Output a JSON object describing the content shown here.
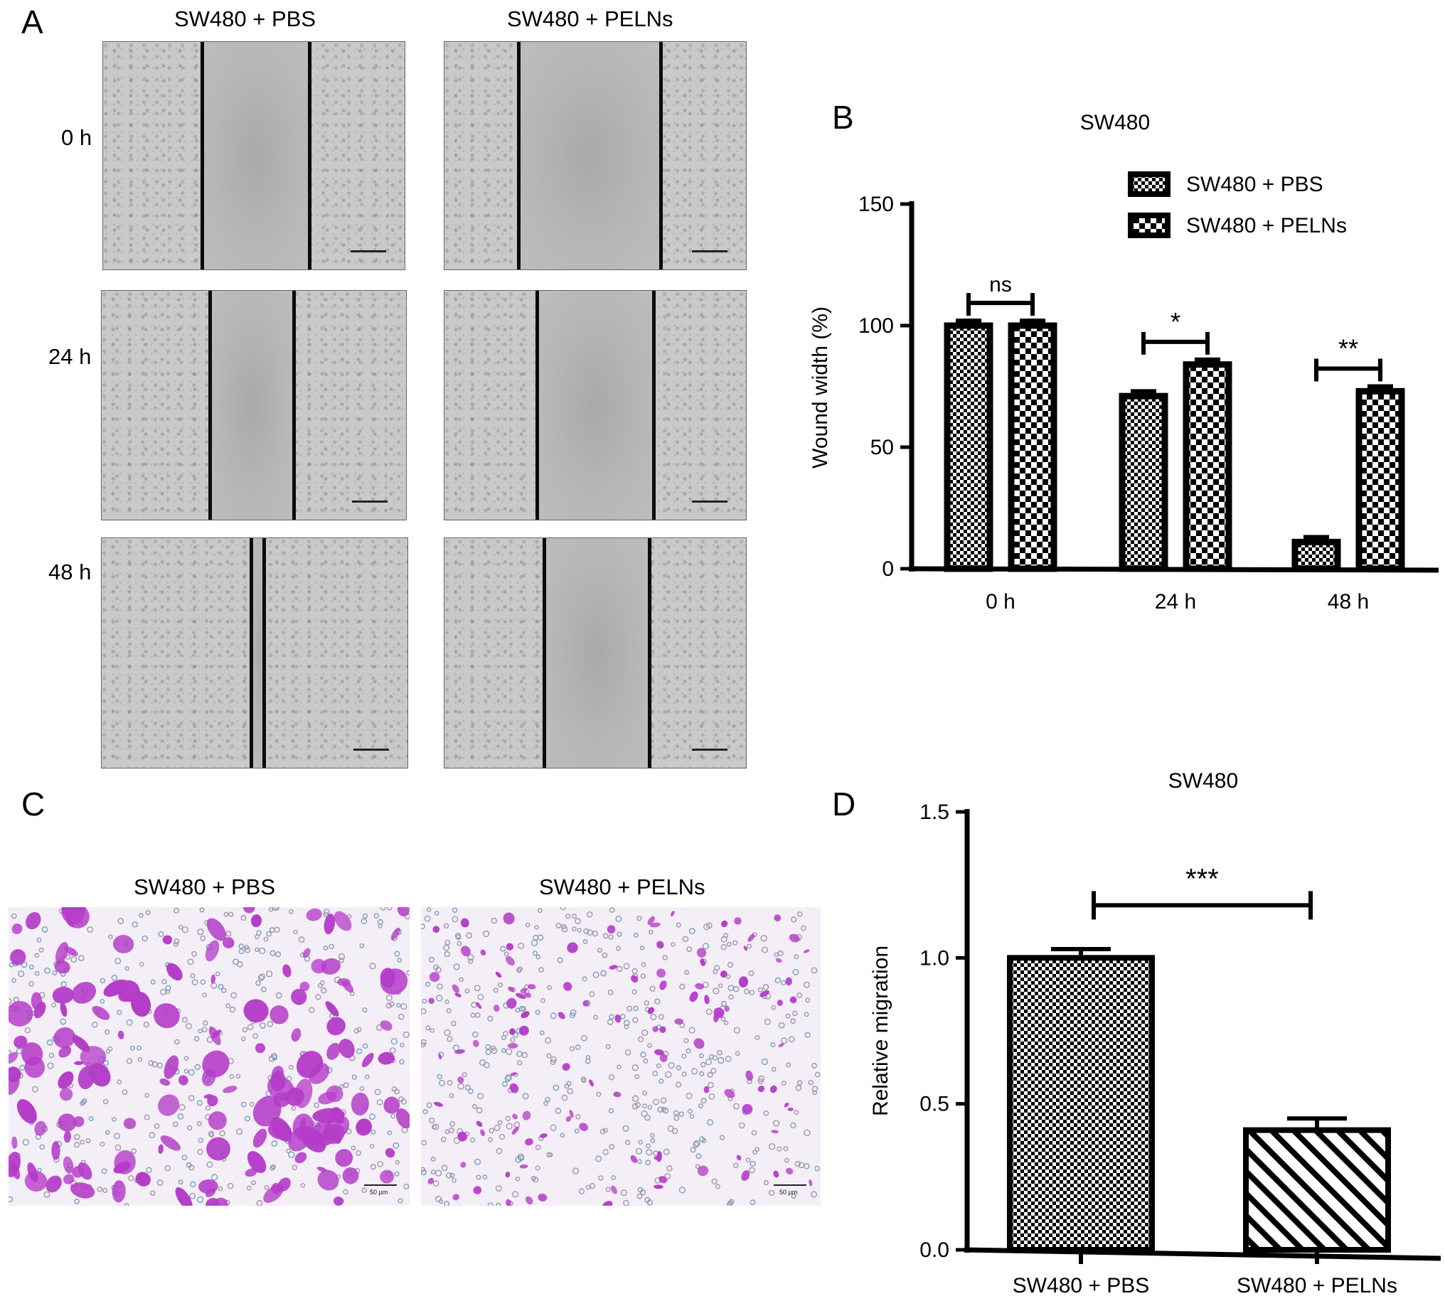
{
  "panels": {
    "a": "A",
    "b": "B",
    "c": "C",
    "d": "D"
  },
  "panel_a": {
    "columns": [
      "SW480 + PBS",
      "SW480 + PELNs"
    ],
    "rows": [
      "0 h",
      "24 h",
      "48 h"
    ]
  },
  "panel_c": {
    "columns": [
      "SW480 + PBS",
      "SW480 + PELNs"
    ],
    "scale_label": "50 µm"
  },
  "chart_data": [
    {
      "type": "bar",
      "panel": "B",
      "title": "SW480",
      "ylabel": "Wound width (%)",
      "xlabel": "",
      "categories": [
        "0 h",
        "24 h",
        "48 h"
      ],
      "ylim": [
        0,
        150
      ],
      "yticks": [
        0,
        50,
        100,
        150
      ],
      "series": [
        {
          "name": "SW480 + PBS",
          "values": [
            100,
            71,
            11
          ],
          "errors": [
            2,
            2,
            2
          ]
        },
        {
          "name": "SW480 + PELNs",
          "values": [
            100,
            84,
            73
          ],
          "errors": [
            2,
            2,
            2
          ]
        }
      ],
      "significance": [
        "ns",
        "*",
        "**"
      ],
      "legend": "top-right",
      "grid": false
    },
    {
      "type": "bar",
      "panel": "D",
      "title": "SW480",
      "ylabel": "Relative migration",
      "xlabel": "",
      "categories": [
        "SW480 + PBS",
        "SW480 + PELNs"
      ],
      "values": [
        1.0,
        0.41
      ],
      "errors": [
        0.03,
        0.04
      ],
      "ylim": [
        0,
        1.5
      ],
      "yticks": [
        "0.0",
        "0.5",
        "1.0",
        "1.5"
      ],
      "significance": "***",
      "grid": false
    }
  ],
  "colors": {
    "bars": "#000000",
    "stain": "#b43cc8",
    "background": "#ffffff"
  }
}
